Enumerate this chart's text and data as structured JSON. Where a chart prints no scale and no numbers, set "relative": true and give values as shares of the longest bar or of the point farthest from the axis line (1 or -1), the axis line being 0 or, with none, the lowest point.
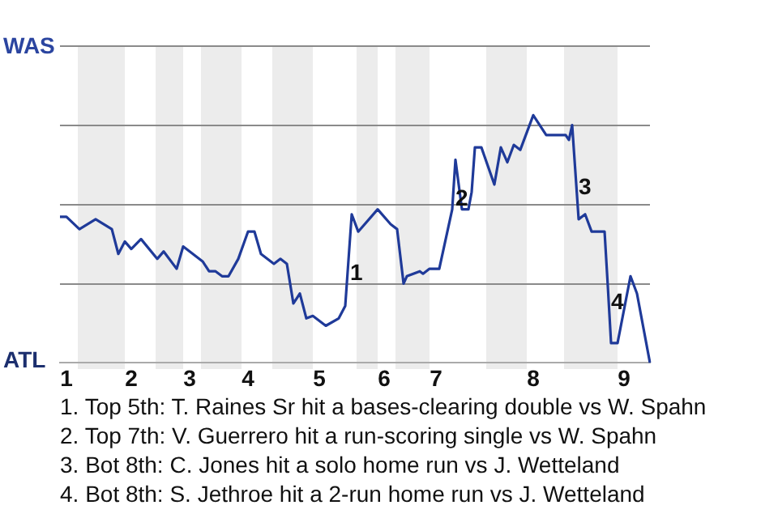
{
  "chart_data": {
    "type": "line",
    "relative": true,
    "categories": [
      null,
      null,
      "1",
      null,
      null,
      null,
      null,
      null,
      null,
      null,
      null,
      null,
      null,
      null,
      null,
      null,
      null,
      null,
      null,
      null,
      null,
      null,
      "2",
      null,
      null,
      null,
      null,
      null,
      null,
      null,
      null,
      null,
      null,
      null,
      null,
      null,
      null,
      null,
      null,
      null,
      "3",
      null,
      null,
      null,
      null,
      null,
      null,
      null,
      null,
      null,
      null,
      null,
      null,
      null,
      null,
      null,
      null,
      null,
      "4",
      null,
      null,
      null,
      null,
      null,
      null,
      null,
      null,
      null,
      null,
      null,
      null,
      null,
      null,
      null,
      null,
      null,
      null,
      null,
      null,
      null,
      "5",
      null,
      null,
      null,
      null,
      null,
      null,
      null,
      null,
      null,
      null,
      null,
      null,
      null,
      null,
      null,
      null,
      null,
      null,
      null,
      "6",
      null,
      null,
      null,
      null,
      null,
      null,
      null,
      null,
      null,
      null,
      null,
      null,
      null,
      null,
      null,
      "7",
      null,
      null,
      null,
      null,
      null,
      null,
      null,
      null,
      null,
      null,
      null,
      null,
      null,
      null,
      null,
      null,
      null,
      null,
      null,
      null,
      null,
      null,
      null,
      null,
      null,
      null,
      null,
      null,
      null,
      "8",
      null,
      null,
      null,
      null,
      null,
      null,
      null,
      null,
      null,
      null,
      null,
      null,
      null,
      null,
      null,
      null,
      null,
      null,
      null,
      null,
      null,
      null,
      null,
      null,
      null,
      null,
      null,
      "9",
      null,
      null,
      null,
      null,
      null,
      null,
      null,
      null
    ],
    "series": [
      {
        "color": "#1f3a99",
        "values": [
          0.59,
          null,
          0.59,
          null,
          null,
          null,
          0.54,
          null,
          null,
          null,
          null,
          0.58,
          null,
          null,
          null,
          null,
          0.54,
          null,
          0.44,
          null,
          0.49,
          null,
          0.46,
          null,
          null,
          0.5,
          null,
          null,
          null,
          null,
          0.42,
          null,
          0.45,
          null,
          null,
          null,
          0.38,
          null,
          0.47,
          null,
          null,
          null,
          null,
          null,
          0.41,
          null,
          0.37,
          null,
          0.37,
          null,
          0.35,
          null,
          0.35,
          null,
          null,
          0.42,
          null,
          null,
          0.53,
          null,
          0.53,
          null,
          0.44,
          null,
          null,
          null,
          0.4,
          null,
          0.42,
          null,
          0.4,
          null,
          0.24,
          0.26,
          0.28,
          null,
          0.18,
          null,
          0.19,
          null,
          null,
          null,
          0.15,
          null,
          null,
          null,
          0.18,
          null,
          0.23,
          null,
          0.6,
          null,
          0.53,
          null,
          null,
          null,
          null,
          null,
          0.62,
          null,
          null,
          null,
          0.56,
          null,
          0.54,
          null,
          0.32,
          0.35,
          null,
          null,
          null,
          0.37,
          0.36,
          null,
          0.38,
          null,
          null,
          0.38,
          null,
          null,
          null,
          0.62,
          0.82,
          null,
          0.62,
          null,
          0.62,
          0.69,
          0.87,
          null,
          0.87,
          null,
          null,
          null,
          0.72,
          null,
          0.87,
          null,
          0.81,
          null,
          0.88,
          null,
          0.86,
          null,
          null,
          null,
          1,
          null,
          null,
          null,
          0.92,
          null,
          null,
          null,
          null,
          null,
          0.92,
          0.9,
          0.96,
          null,
          0.58,
          null,
          0.6,
          null,
          0.53,
          null,
          null,
          null,
          0.53,
          0.31,
          0.08,
          null,
          0.08,
          null,
          null,
          null,
          0.35,
          null,
          0.28,
          null,
          null,
          null,
          0
        ]
      }
    ],
    "grid": "y",
    "legend": false,
    "marker": "none",
    "line_style": "solid",
    "annotations": [
      "WAS",
      "ATL",
      "1",
      "2",
      "3",
      "4",
      "1. Top 5th: T. Raines Sr hit a bases-clearing double vs W. Spahn",
      "2. Top 7th: V. Guerrero hit a run-scoring single vs W. Spahn",
      "3. Bot 8th: C. Jones hit a solo home run vs J. Wetteland",
      "4. Bot 8th: S. Jethroe hit a 2-run home run vs J. Wetteland"
    ]
  }
}
